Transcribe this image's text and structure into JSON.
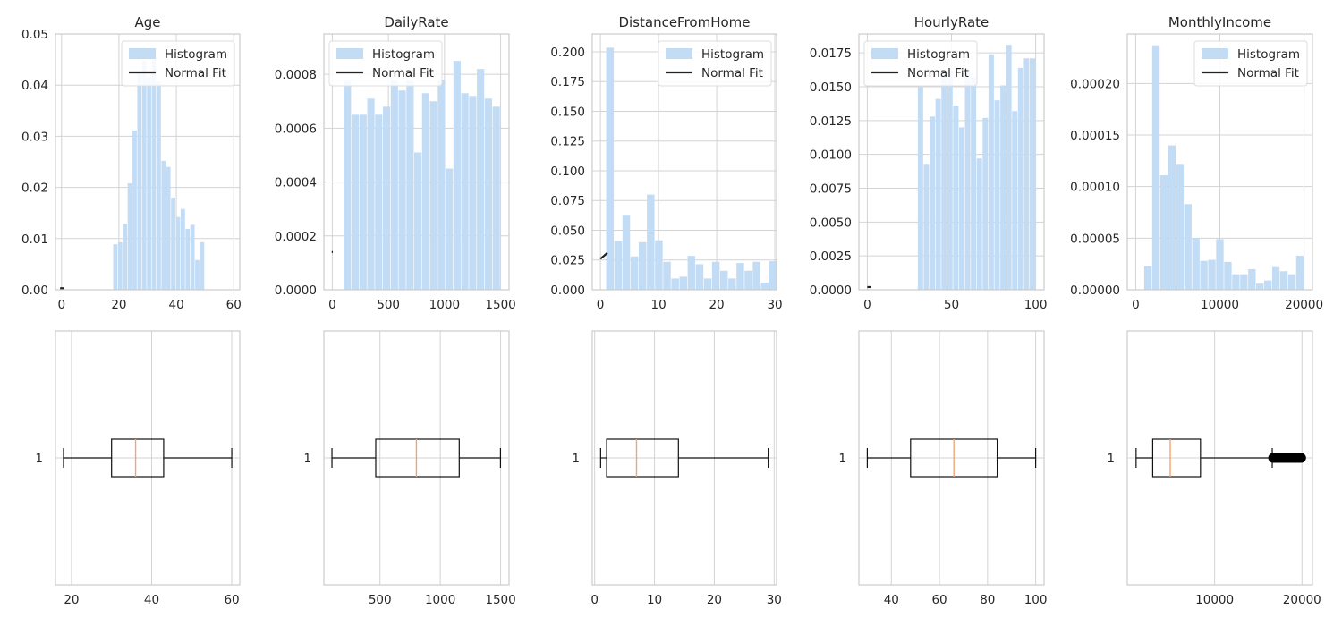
{
  "chart_data": [
    {
      "type": "bar",
      "title": "Age",
      "xlim": [
        -2.1,
        62.1
      ],
      "ylim": [
        0,
        0.05
      ],
      "xticks": [
        0,
        20,
        40,
        60
      ],
      "xtick_labels": [
        "0",
        "20",
        "40",
        "60"
      ],
      "yticks": [
        0,
        0.01,
        0.02,
        0.03,
        0.04,
        0.05
      ],
      "ytick_labels": [
        "0.00",
        "0.01",
        "0.02",
        "0.03",
        "0.04",
        "0.05"
      ],
      "legend": {
        "position": "top-right",
        "entries": [
          "Histogram",
          "Normal Fit"
        ]
      },
      "histogram": {
        "bin_start": 18,
        "bin_width": 1.68,
        "values": [
          0.0089,
          0.0093,
          0.0129,
          0.0208,
          0.0311,
          0.0425,
          0.0448,
          0.0416,
          0.0458,
          0.0407,
          0.0252,
          0.024,
          0.018,
          0.0142,
          0.0158,
          0.0119,
          0.0127,
          0.0058,
          0.0093
        ],
        "extra_bars": [
          {
            "x0": -0.5,
            "x1": 1.0,
            "value": 0.0004
          }
        ]
      },
      "normal_fit": {
        "points": [
          [
            -0.5,
            0.0003
          ],
          [
            1.0,
            0.0003
          ]
        ]
      },
      "box": {
        "label": "1",
        "xlim": [
          16.0,
          62.0
        ],
        "xticks": [
          20,
          40,
          60
        ],
        "xtick_labels": [
          "20",
          "40",
          "60"
        ],
        "whisker_low": 18,
        "q1": 30,
        "median": 36,
        "q3": 43,
        "whisker_high": 60,
        "outliers": []
      }
    },
    {
      "type": "bar",
      "title": "DailyRate",
      "xlim": [
        -75,
        1575
      ],
      "ylim": [
        0,
        0.00095
      ],
      "xticks": [
        0,
        500,
        1000,
        1500
      ],
      "xtick_labels": [
        "0",
        "500",
        "1000",
        "1500"
      ],
      "yticks": [
        0,
        0.0002,
        0.0004,
        0.0006,
        0.0008
      ],
      "ytick_labels": [
        "0.0000",
        "0.0002",
        "0.0004",
        "0.0006",
        "0.0008"
      ],
      "legend": {
        "position": "top-left",
        "entries": [
          "Histogram",
          "Normal Fit"
        ]
      },
      "histogram": {
        "bin_start": 102,
        "bin_width": 69.8,
        "values": [
          0.00078,
          0.00065,
          0.00065,
          0.00071,
          0.00065,
          0.00068,
          0.00078,
          0.00074,
          0.00078,
          0.00051,
          0.00073,
          0.0007,
          0.00078,
          0.00045,
          0.00085,
          0.00073,
          0.00072,
          0.00082,
          0.00071,
          0.00068
        ],
        "extra_bars": []
      },
      "normal_fit": {
        "points": [
          [
            -5,
            0.00014
          ],
          [
            5,
            0.00014
          ]
        ]
      },
      "box": {
        "label": "1",
        "xlim": [
          35,
          1570
        ],
        "xticks": [
          500,
          1000,
          1500
        ],
        "xtick_labels": [
          "500",
          "1000",
          "1500"
        ],
        "whisker_low": 102,
        "q1": 465,
        "median": 802,
        "q3": 1157,
        "whisker_high": 1499,
        "outliers": []
      }
    },
    {
      "type": "bar",
      "title": "DistanceFromHome",
      "xlim": [
        -1.4,
        30.3
      ],
      "ylim": [
        0,
        0.215
      ],
      "xticks": [
        0,
        10,
        20,
        30
      ],
      "xtick_labels": [
        "0",
        "10",
        "20",
        "30"
      ],
      "yticks": [
        0,
        0.025,
        0.05,
        0.075,
        0.1,
        0.125,
        0.15,
        0.175,
        0.2
      ],
      "ytick_labels": [
        "0.000",
        "0.025",
        "0.050",
        "0.075",
        "0.100",
        "0.125",
        "0.150",
        "0.175",
        "0.200"
      ],
      "legend": {
        "position": "top-right",
        "entries": [
          "Histogram",
          "Normal Fit"
        ]
      },
      "histogram": {
        "bin_start": 1,
        "bin_width": 1.4,
        "values": [
          0.2035,
          0.041,
          0.063,
          0.028,
          0.04,
          0.08,
          0.0415,
          0.0235,
          0.0095,
          0.011,
          0.0285,
          0.0215,
          0.0095,
          0.0235,
          0.016,
          0.0095,
          0.0225,
          0.016,
          0.0235,
          0.006,
          0.024
        ],
        "extra_bars": []
      },
      "normal_fit": {
        "points": [
          [
            0.0,
            0.026
          ],
          [
            0.3,
            0.0272
          ],
          [
            0.6,
            0.0284
          ],
          [
            0.9,
            0.0297
          ],
          [
            1.2,
            0.031
          ]
        ]
      },
      "box": {
        "label": "1",
        "xlim": [
          -0.4,
          30.4
        ],
        "xticks": [
          0,
          10,
          20,
          30
        ],
        "xtick_labels": [
          "0",
          "10",
          "20",
          "30"
        ],
        "whisker_low": 1,
        "q1": 2,
        "median": 7,
        "q3": 14,
        "whisker_high": 29,
        "outliers": []
      }
    },
    {
      "type": "bar",
      "title": "HourlyRate",
      "xlim": [
        -5,
        105
      ],
      "ylim": [
        0,
        0.0189
      ],
      "xticks": [
        0,
        50,
        100
      ],
      "xtick_labels": [
        "0",
        "50",
        "100"
      ],
      "yticks": [
        0,
        0.0025,
        0.005,
        0.0075,
        0.01,
        0.0125,
        0.015,
        0.0175
      ],
      "ytick_labels": [
        "0.0000",
        "0.0025",
        "0.0050",
        "0.0075",
        "0.0100",
        "0.0125",
        "0.0150",
        "0.0175"
      ],
      "legend": {
        "position": "top-left",
        "entries": [
          "Histogram",
          "Normal Fit"
        ]
      },
      "histogram": {
        "bin_start": 30,
        "bin_width": 3.5,
        "values": [
          0.015,
          0.0093,
          0.0128,
          0.0141,
          0.0158,
          0.0162,
          0.0136,
          0.012,
          0.0163,
          0.0157,
          0.0097,
          0.0127,
          0.0174,
          0.014,
          0.0151,
          0.0181,
          0.0132,
          0.0164,
          0.0171,
          0.0171
        ],
        "extra_bars": []
      },
      "normal_fit": {
        "points": [
          [
            0,
            0.0002
          ],
          [
            2,
            0.0002
          ]
        ]
      },
      "box": {
        "label": "1",
        "xlim": [
          26.5,
          103.5
        ],
        "xticks": [
          40,
          60,
          80,
          100
        ],
        "xtick_labels": [
          "40",
          "60",
          "80",
          "100"
        ],
        "whisker_low": 30,
        "q1": 48,
        "median": 66,
        "q3": 84,
        "whisker_high": 100,
        "outliers": []
      }
    },
    {
      "type": "bar",
      "title": "MonthlyIncome",
      "xlim": [
        -1000,
        21000
      ],
      "ylim": [
        0,
        0.000248
      ],
      "xticks": [
        0,
        10000,
        20000
      ],
      "xtick_labels": [
        "0",
        "10000",
        "20000"
      ],
      "yticks": [
        0,
        5e-05,
        0.0001,
        0.00015,
        0.0002
      ],
      "ytick_labels": [
        "0.00000",
        "0.00005",
        "0.00010",
        "0.00015",
        "0.00020"
      ],
      "legend": {
        "position": "top-right",
        "entries": [
          "Histogram",
          "Normal Fit"
        ]
      },
      "histogram": {
        "bin_start": 1009,
        "bin_width": 950,
        "values": [
          2.3e-05,
          0.000237,
          0.000111,
          0.00014,
          0.000122,
          8.3e-05,
          5e-05,
          2.8e-05,
          2.9e-05,
          4.9e-05,
          2.7e-05,
          1.5e-05,
          1.5e-05,
          2e-05,
          6e-06,
          9e-06,
          2.2e-05,
          1.8e-05,
          1.5e-05,
          3.3e-05
        ],
        "extra_bars": []
      },
      "normal_fit": {
        "points": []
      },
      "box": {
        "label": "1",
        "xlim": [
          0,
          21200
        ],
        "xticks": [
          10000,
          20000
        ],
        "xtick_labels": [
          "10000",
          "20000"
        ],
        "whisker_low": 1009,
        "q1": 2911,
        "median": 4919,
        "q3": 8379,
        "whisker_high": 16595,
        "outliers": [
          16700,
          16900,
          17100,
          17300,
          17500,
          17700,
          17900,
          18100,
          18300,
          18500,
          18700,
          18900,
          19100,
          19300,
          19500,
          19700,
          19900
        ]
      }
    }
  ]
}
